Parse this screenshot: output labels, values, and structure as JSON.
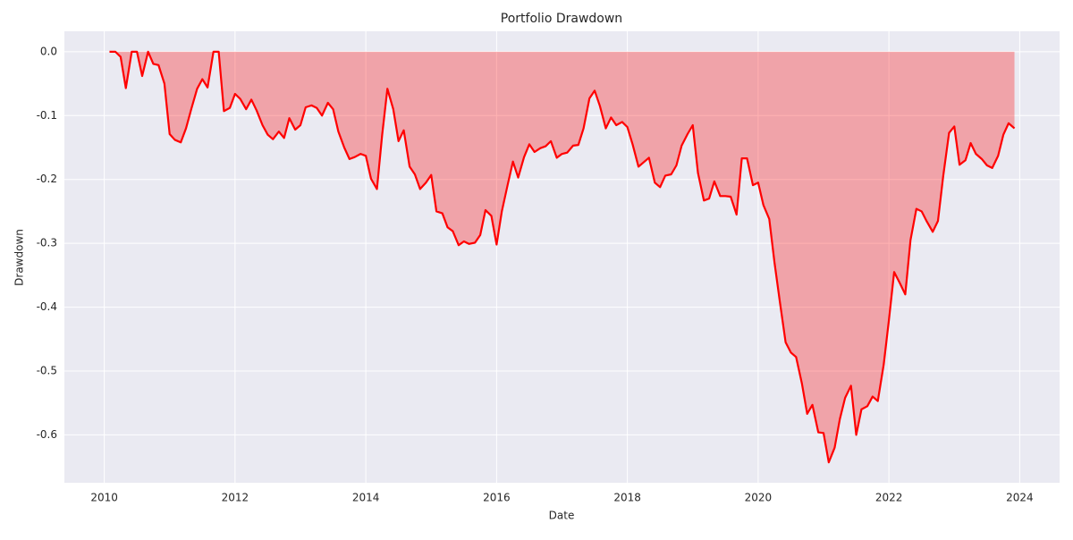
{
  "chart_data": {
    "type": "area_line",
    "title": "Portfolio Drawdown",
    "x_label": "Date",
    "y_label": "Drawdown",
    "x": [
      2010.08,
      2010.17,
      2010.25,
      2010.33,
      2010.42,
      2010.5,
      2010.58,
      2010.67,
      2010.75,
      2010.83,
      2010.92,
      2011.0,
      2011.08,
      2011.17,
      2011.25,
      2011.33,
      2011.42,
      2011.5,
      2011.58,
      2011.67,
      2011.75,
      2011.83,
      2011.92,
      2012.0,
      2012.08,
      2012.17,
      2012.25,
      2012.33,
      2012.42,
      2012.5,
      2012.58,
      2012.67,
      2012.75,
      2012.83,
      2012.92,
      2013.0,
      2013.08,
      2013.17,
      2013.25,
      2013.33,
      2013.42,
      2013.5,
      2013.58,
      2013.67,
      2013.75,
      2013.83,
      2013.92,
      2014.0,
      2014.08,
      2014.17,
      2014.25,
      2014.33,
      2014.42,
      2014.5,
      2014.58,
      2014.67,
      2014.75,
      2014.83,
      2014.92,
      2015.0,
      2015.08,
      2015.17,
      2015.25,
      2015.33,
      2015.42,
      2015.5,
      2015.58,
      2015.67,
      2015.75,
      2015.83,
      2015.92,
      2016.0,
      2016.08,
      2016.17,
      2016.25,
      2016.33,
      2016.42,
      2016.5,
      2016.58,
      2016.67,
      2016.75,
      2016.83,
      2016.92,
      2017.0,
      2017.08,
      2017.17,
      2017.25,
      2017.33,
      2017.42,
      2017.5,
      2017.58,
      2017.67,
      2017.75,
      2017.83,
      2017.92,
      2018.0,
      2018.08,
      2018.17,
      2018.25,
      2018.33,
      2018.42,
      2018.5,
      2018.58,
      2018.67,
      2018.75,
      2018.83,
      2018.92,
      2019.0,
      2019.08,
      2019.17,
      2019.25,
      2019.33,
      2019.42,
      2019.5,
      2019.58,
      2019.67,
      2019.75,
      2019.83,
      2019.92,
      2020.0,
      2020.08,
      2020.17,
      2020.25,
      2020.33,
      2020.42,
      2020.5,
      2020.58,
      2020.67,
      2020.75,
      2020.83,
      2020.92,
      2021.0,
      2021.08,
      2021.17,
      2021.25,
      2021.33,
      2021.42,
      2021.5,
      2021.58,
      2021.67,
      2021.75,
      2021.83,
      2021.92,
      2022.0,
      2022.08,
      2022.17,
      2022.25,
      2022.33,
      2022.42,
      2022.5,
      2022.58,
      2022.67,
      2022.75,
      2022.83,
      2022.92,
      2023.0,
      2023.08,
      2023.17,
      2023.25,
      2023.33,
      2023.42,
      2023.5,
      2023.58,
      2023.67,
      2023.75,
      2023.83,
      2023.92
    ],
    "series": [
      {
        "color": "red",
        "fill_color": "red",
        "fill_alpha": 0.3,
        "values": [
          0.0,
          0.0,
          -0.008,
          -0.057,
          0.0,
          0.0,
          -0.038,
          0.0,
          -0.019,
          -0.021,
          -0.05,
          -0.129,
          -0.138,
          -0.142,
          -0.12,
          -0.09,
          -0.058,
          -0.043,
          -0.056,
          0.0,
          0.0,
          -0.093,
          -0.088,
          -0.066,
          -0.074,
          -0.09,
          -0.075,
          -0.092,
          -0.115,
          -0.13,
          -0.137,
          -0.125,
          -0.135,
          -0.104,
          -0.122,
          -0.115,
          -0.087,
          -0.084,
          -0.088,
          -0.1,
          -0.08,
          -0.09,
          -0.125,
          -0.15,
          -0.168,
          -0.165,
          -0.16,
          -0.163,
          -0.199,
          -0.215,
          -0.13,
          -0.058,
          -0.09,
          -0.14,
          -0.123,
          -0.18,
          -0.192,
          -0.215,
          -0.205,
          -0.193,
          -0.25,
          -0.253,
          -0.275,
          -0.281,
          -0.303,
          -0.297,
          -0.301,
          -0.299,
          -0.287,
          -0.248,
          -0.257,
          -0.302,
          -0.25,
          -0.208,
          -0.172,
          -0.197,
          -0.165,
          -0.145,
          -0.157,
          -0.151,
          -0.148,
          -0.14,
          -0.166,
          -0.16,
          -0.158,
          -0.147,
          -0.146,
          -0.12,
          -0.073,
          -0.061,
          -0.085,
          -0.12,
          -0.103,
          -0.115,
          -0.11,
          -0.118,
          -0.145,
          -0.18,
          -0.173,
          -0.166,
          -0.205,
          -0.212,
          -0.194,
          -0.192,
          -0.178,
          -0.147,
          -0.129,
          -0.115,
          -0.19,
          -0.233,
          -0.23,
          -0.203,
          -0.226,
          -0.226,
          -0.227,
          -0.255,
          -0.167,
          -0.167,
          -0.209,
          -0.205,
          -0.24,
          -0.262,
          -0.33,
          -0.39,
          -0.455,
          -0.471,
          -0.478,
          -0.52,
          -0.567,
          -0.553,
          -0.596,
          -0.597,
          -0.643,
          -0.62,
          -0.575,
          -0.542,
          -0.523,
          -0.6,
          -0.56,
          -0.555,
          -0.54,
          -0.547,
          -0.49,
          -0.42,
          -0.345,
          -0.363,
          -0.38,
          -0.295,
          -0.246,
          -0.25,
          -0.266,
          -0.282,
          -0.265,
          -0.195,
          -0.127,
          -0.117,
          -0.177,
          -0.17,
          -0.143,
          -0.16,
          -0.168,
          -0.178,
          -0.182,
          -0.163,
          -0.13,
          -0.112,
          -0.12
        ]
      }
    ],
    "xlim": [
      2009.39,
      2024.61
    ],
    "xticks": [
      2010,
      2012,
      2014,
      2016,
      2018,
      2020,
      2022,
      2024
    ],
    "ylim": [
      -0.675,
      0.032
    ],
    "yticks": [
      {
        "value": 0,
        "label": "0.0"
      },
      -0.1,
      -0.2,
      -0.3,
      -0.4,
      -0.5,
      -0.6
    ],
    "grid": true
  }
}
